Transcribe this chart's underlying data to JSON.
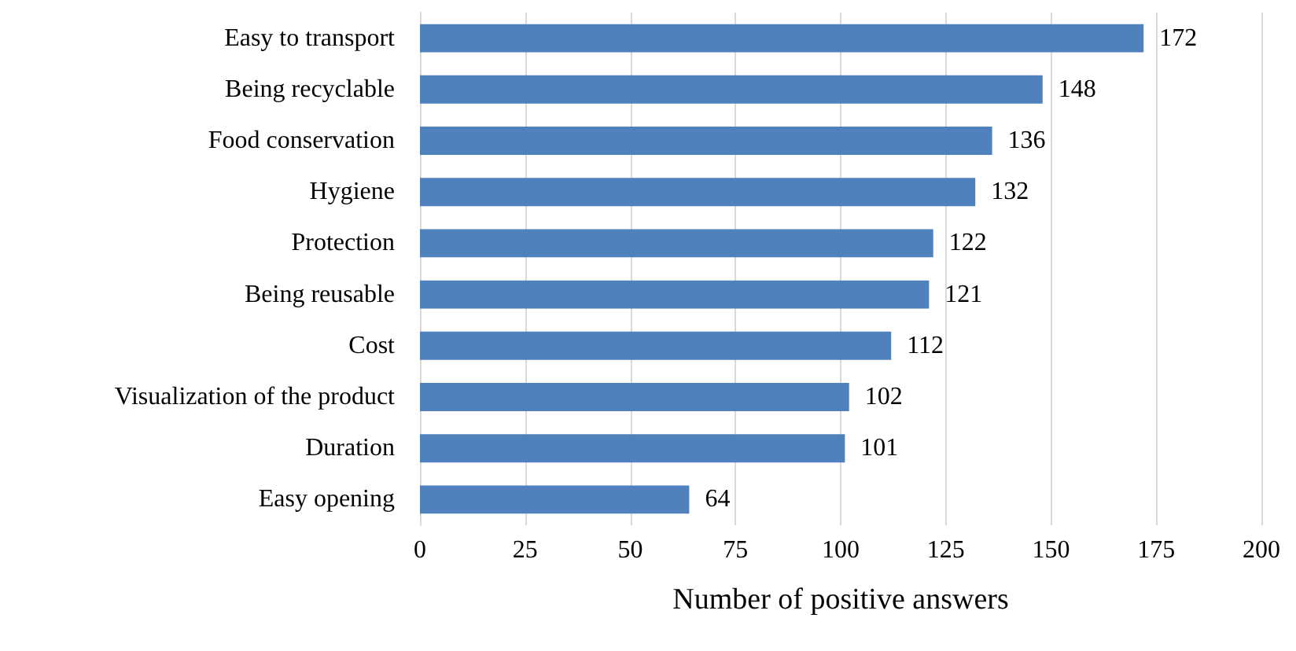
{
  "chart_data": {
    "type": "bar",
    "orientation": "horizontal",
    "xlabel": "Number of positive answers",
    "categories": [
      "Easy to transport",
      "Being recyclable",
      "Food conservation",
      "Hygiene",
      "Protection",
      "Being reusable",
      "Cost",
      "Visualization of the product",
      "Duration",
      "Easy opening"
    ],
    "values": [
      172,
      148,
      136,
      132,
      122,
      121,
      112,
      102,
      101,
      64
    ],
    "color": "#4f81bd",
    "xlim": [
      0,
      200
    ],
    "xticks": [
      0,
      25,
      50,
      75,
      100,
      125,
      150,
      175,
      200
    ],
    "grid": "x",
    "data_labels": true
  }
}
